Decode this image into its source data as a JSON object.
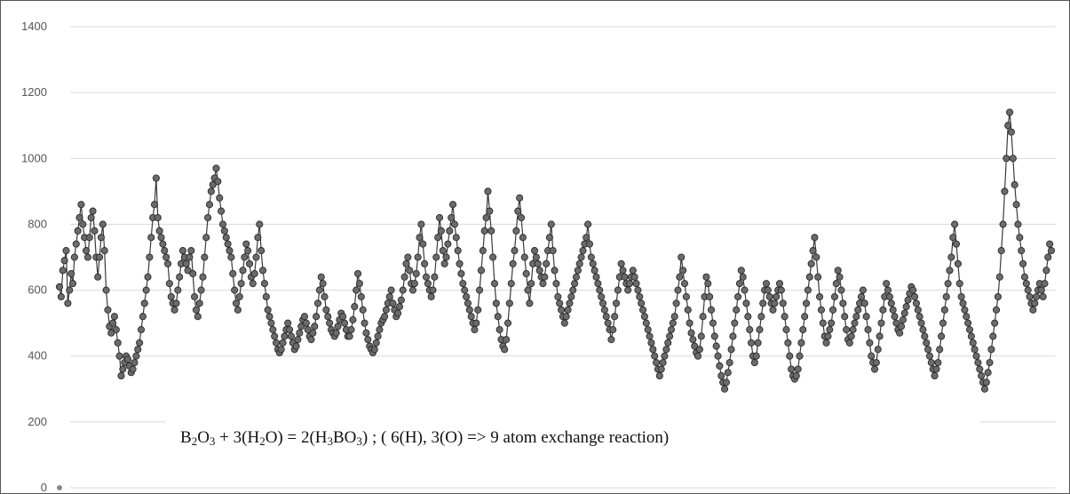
{
  "chart_data": {
    "type": "line",
    "title": "",
    "xlabel": "",
    "ylabel": "",
    "ylim": [
      0,
      1400
    ],
    "yticks": [
      "0",
      "200",
      "400",
      "600",
      "800",
      "1000",
      "1200",
      "1400"
    ],
    "grid": true,
    "legend": "none",
    "marker": "circle",
    "colors": {
      "line": "#3a3a3a",
      "marker_fill": "#6b6b6b",
      "marker_edge": "#2a2a2a",
      "grid": "#d9d9d9"
    },
    "series": [
      {
        "values": [
          610,
          580,
          660,
          690,
          720,
          560,
          600,
          650,
          620,
          700,
          740,
          780,
          820,
          860,
          800,
          760,
          720,
          700,
          760,
          820,
          840,
          780,
          700,
          640,
          700,
          760,
          800,
          720,
          600,
          540,
          490,
          470,
          500,
          520,
          480,
          440,
          400,
          340,
          360,
          380,
          400,
          390,
          370,
          350,
          360,
          380,
          400,
          420,
          440,
          480,
          520,
          560,
          600,
          640,
          700,
          760,
          820,
          860,
          940,
          820,
          780,
          760,
          740,
          720,
          700,
          680,
          620,
          580,
          560,
          540,
          560,
          600,
          640,
          680,
          720,
          700,
          680,
          660,
          700,
          720,
          650,
          580,
          540,
          520,
          560,
          600,
          640,
          700,
          760,
          820,
          860,
          900,
          920,
          940,
          970,
          930,
          880,
          840,
          800,
          780,
          760,
          740,
          720,
          700,
          650,
          600,
          560,
          540,
          580,
          620,
          660,
          700,
          740,
          720,
          680,
          640,
          620,
          650,
          700,
          760,
          800,
          720,
          660,
          620,
          580,
          540,
          520,
          500,
          480,
          460,
          440,
          420,
          410,
          420,
          440,
          460,
          480,
          500,
          480,
          460,
          440,
          420,
          430,
          450,
          470,
          490,
          510,
          520,
          500,
          480,
          460,
          450,
          470,
          490,
          520,
          560,
          600,
          640,
          620,
          580,
          540,
          520,
          500,
          480,
          470,
          460,
          470,
          490,
          510,
          530,
          520,
          500,
          480,
          460,
          460,
          480,
          510,
          550,
          600,
          650,
          620,
          580,
          540,
          500,
          470,
          450,
          430,
          420,
          410,
          420,
          440,
          460,
          480,
          500,
          510,
          520,
          540,
          560,
          580,
          600,
          560,
          540,
          520,
          530,
          550,
          570,
          600,
          640,
          680,
          700,
          660,
          620,
          600,
          620,
          650,
          700,
          760,
          800,
          740,
          680,
          640,
          620,
          600,
          580,
          600,
          640,
          700,
          760,
          820,
          780,
          720,
          680,
          700,
          740,
          780,
          820,
          860,
          800,
          760,
          720,
          680,
          650,
          620,
          600,
          580,
          560,
          540,
          520,
          500,
          480,
          500,
          540,
          600,
          660,
          720,
          780,
          820,
          900,
          840,
          780,
          700,
          620,
          560,
          520,
          480,
          450,
          430,
          420,
          450,
          500,
          560,
          620,
          680,
          720,
          780,
          840,
          880,
          820,
          760,
          700,
          650,
          600,
          560,
          620,
          680,
          720,
          700,
          680,
          660,
          640,
          620,
          640,
          680,
          720,
          760,
          800,
          720,
          660,
          620,
          580,
          560,
          540,
          520,
          500,
          520,
          540,
          560,
          580,
          600,
          620,
          640,
          660,
          680,
          700,
          720,
          740,
          760,
          800,
          740,
          700,
          680,
          660,
          640,
          620,
          600,
          580,
          560,
          540,
          520,
          500,
          480,
          450,
          480,
          520,
          560,
          600,
          640,
          680,
          660,
          640,
          620,
          600,
          620,
          640,
          660,
          640,
          620,
          600,
          580,
          560,
          540,
          520,
          500,
          480,
          460,
          440,
          420,
          400,
          380,
          360,
          340,
          360,
          380,
          400,
          420,
          440,
          460,
          480,
          500,
          520,
          560,
          600,
          640,
          700,
          660,
          620,
          580,
          540,
          500,
          470,
          450,
          430,
          410,
          400,
          420,
          460,
          520,
          580,
          640,
          620,
          580,
          540,
          500,
          460,
          430,
          400,
          370,
          340,
          320,
          300,
          320,
          350,
          380,
          420,
          460,
          500,
          540,
          580,
          620,
          660,
          640,
          600,
          560,
          520,
          480,
          440,
          400,
          380,
          400,
          440,
          480,
          520,
          560,
          600,
          620,
          600,
          580,
          560,
          540,
          560,
          580,
          600,
          620,
          600,
          560,
          520,
          480,
          440,
          400,
          360,
          340,
          330,
          340,
          360,
          400,
          440,
          480,
          520,
          560,
          600,
          640,
          680,
          720,
          760,
          700,
          640,
          580,
          540,
          500,
          460,
          440,
          460,
          480,
          500,
          540,
          580,
          620,
          660,
          640,
          600,
          560,
          520,
          480,
          450,
          440,
          460,
          480,
          500,
          520,
          540,
          560,
          580,
          600,
          560,
          520,
          480,
          440,
          400,
          380,
          360,
          380,
          420,
          460,
          500,
          540,
          580,
          620,
          600,
          580,
          560,
          540,
          520,
          500,
          480,
          470,
          490,
          510,
          530,
          550,
          570,
          590,
          610,
          600,
          580,
          560,
          540,
          520,
          500,
          480,
          460,
          440,
          420,
          400,
          380,
          360,
          340,
          360,
          380,
          420,
          460,
          500,
          540,
          580,
          620,
          660,
          700,
          760,
          800,
          740,
          680,
          620,
          580,
          560,
          540,
          520,
          500,
          480,
          460,
          440,
          420,
          400,
          380,
          360,
          340,
          320,
          300,
          320,
          350,
          380,
          420,
          460,
          500,
          540,
          580,
          640,
          720,
          800,
          900,
          1000,
          1100,
          1140,
          1080,
          1000,
          920,
          860,
          800,
          760,
          720,
          680,
          640,
          620,
          600,
          580,
          560,
          540,
          560,
          580,
          600,
          620,
          600,
          580,
          620,
          660,
          700,
          740,
          720
        ]
      }
    ],
    "extra_point": {
      "x": 0,
      "y": 0
    },
    "annotation": {
      "parts": [
        {
          "t": "B"
        },
        {
          "t": "2",
          "sub": true
        },
        {
          "t": "O"
        },
        {
          "t": "3",
          "sub": true
        },
        {
          "t": " + 3(H"
        },
        {
          "t": "2",
          "sub": true
        },
        {
          "t": "O)  =  2(H"
        },
        {
          "t": "3",
          "sub": true
        },
        {
          "t": "BO"
        },
        {
          "t": "3",
          "sub": true
        },
        {
          "t": ")    ;  ( 6(H), 3(O)  =>   9 atom exchange reaction)"
        }
      ]
    }
  }
}
